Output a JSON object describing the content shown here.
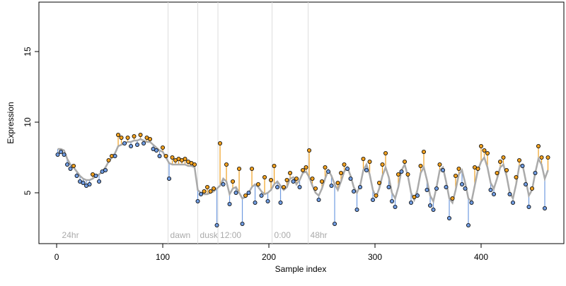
{
  "chart_data": {
    "type": "residual-scatter",
    "xlabel": "Sample index",
    "ylabel": "Expression",
    "xlim": [
      -16.7,
      478
    ],
    "ylim": [
      1.4,
      18.5
    ],
    "xticks": [
      0,
      100,
      200,
      300,
      400
    ],
    "yticks": [
      5,
      10,
      15
    ],
    "annotations": [
      {
        "x": 3,
        "label": "24hr",
        "line": false
      },
      {
        "x": 105,
        "label": "dawn",
        "line": true
      },
      {
        "x": 133,
        "label": "dusk",
        "line": true
      },
      {
        "x": 152,
        "label": "12:00",
        "line": true
      },
      {
        "x": 203,
        "label": "0:00",
        "line": true
      },
      {
        "x": 237,
        "label": "48hr",
        "line": true
      }
    ],
    "fit_color": "#aaaaaa",
    "above_color": "#f0a020",
    "below_color": "#6f9be0",
    "x": [
      1,
      4,
      7,
      10,
      13,
      16,
      19,
      22,
      25,
      28,
      31,
      34,
      37,
      40,
      43,
      46,
      49,
      52,
      55,
      58,
      61,
      64,
      67,
      70,
      73,
      76,
      79,
      82,
      85,
      88,
      91,
      94,
      97,
      100,
      103,
      106,
      109,
      112,
      115,
      118,
      121,
      124,
      127,
      130,
      133,
      136,
      139,
      142,
      145,
      148,
      151,
      154,
      157,
      160,
      163,
      166,
      169,
      172,
      175,
      178,
      181,
      184,
      187,
      190,
      193,
      196,
      199,
      202,
      205,
      208,
      211,
      214,
      217,
      220,
      223,
      226,
      229,
      232,
      235,
      238,
      241,
      244,
      247,
      250,
      253,
      256,
      259,
      262,
      265,
      268,
      271,
      274,
      277,
      280,
      283,
      286,
      289,
      292,
      295,
      298,
      301,
      304,
      307,
      310,
      313,
      316,
      319,
      322,
      325,
      328,
      331,
      334,
      337,
      340,
      343,
      346,
      349,
      352,
      355,
      358,
      361,
      364,
      367,
      370,
      373,
      376,
      379,
      382,
      385,
      388,
      391,
      394,
      397,
      400,
      403,
      406,
      409,
      412,
      415,
      418,
      421,
      424,
      427,
      430,
      433,
      436,
      439,
      442,
      445,
      448,
      451,
      454,
      457,
      460,
      463
    ],
    "fitted": [
      8.1,
      8.1,
      8.0,
      7.4,
      7.0,
      6.8,
      6.5,
      6.2,
      6.0,
      5.9,
      5.9,
      6.0,
      6.2,
      6.3,
      6.5,
      6.8,
      7.2,
      7.5,
      7.8,
      8.3,
      8.4,
      8.5,
      8.6,
      8.6,
      8.7,
      8.7,
      8.8,
      8.7,
      8.6,
      8.6,
      8.4,
      8.2,
      8.0,
      7.9,
      7.5,
      7.1,
      7.0,
      7.0,
      7.0,
      7.0,
      7.0,
      6.9,
      6.9,
      6.8,
      5.2,
      5.0,
      4.9,
      4.9,
      5.0,
      5.1,
      5.3,
      5.5,
      6.0,
      5.8,
      4.9,
      5.3,
      5.4,
      5.0,
      4.6,
      4.7,
      5.0,
      5.4,
      5.6,
      5.4,
      5.1,
      4.9,
      5.0,
      5.2,
      5.6,
      5.8,
      5.5,
      5.2,
      5.4,
      6.0,
      6.1,
      5.6,
      5.9,
      6.4,
      6.5,
      6.1,
      5.5,
      5.0,
      4.8,
      5.3,
      6.0,
      6.6,
      6.2,
      5.6,
      5.2,
      5.8,
      6.5,
      6.8,
      6.2,
      5.4,
      5.0,
      5.5,
      6.6,
      7.0,
      6.3,
      5.2,
      4.7,
      5.3,
      6.2,
      6.8,
      6.1,
      5.0,
      4.6,
      5.4,
      6.6,
      7.0,
      6.2,
      5.0,
      4.5,
      5.2,
      6.4,
      6.8,
      5.9,
      4.8,
      4.4,
      5.4,
      6.6,
      6.8,
      5.8,
      4.6,
      4.3,
      5.2,
      6.3,
      6.6,
      5.7,
      4.6,
      4.4,
      5.5,
      6.6,
      7.2,
      7.5,
      6.8,
      5.7,
      5.3,
      6.0,
      6.8,
      7.0,
      6.2,
      5.0,
      4.6,
      5.6,
      6.9,
      7.0,
      5.9,
      4.8,
      5.2,
      6.4,
      7.4,
      7.0,
      6.0,
      6.6
    ],
    "observed": [
      7.7,
      7.9,
      7.7,
      7.0,
      6.7,
      6.9,
      6.2,
      5.8,
      5.7,
      5.5,
      5.6,
      6.3,
      6.2,
      5.8,
      6.5,
      6.6,
      7.3,
      7.6,
      7.6,
      9.1,
      8.9,
      8.5,
      8.9,
      8.3,
      9.0,
      8.4,
      9.1,
      8.5,
      8.9,
      8.8,
      8.1,
      8.0,
      7.6,
      8.2,
      7.6,
      6.0,
      7.5,
      7.3,
      7.4,
      7.3,
      7.4,
      7.2,
      7.1,
      7.0,
      4.4,
      4.9,
      5.1,
      5.4,
      5.1,
      5.3,
      2.7,
      8.5,
      5.6,
      7.0,
      4.2,
      5.8,
      5.0,
      6.7,
      2.8,
      4.8,
      5.0,
      6.7,
      4.3,
      5.6,
      4.8,
      6.1,
      4.4,
      5.9,
      6.9,
      5.4,
      4.3,
      5.4,
      5.9,
      6.4,
      5.8,
      6.0,
      5.4,
      6.6,
      6.8,
      8.0,
      6.0,
      5.3,
      4.5,
      5.8,
      6.8,
      6.5,
      5.5,
      2.8,
      5.7,
      6.4,
      7.0,
      6.7,
      6.0,
      5.1,
      3.8,
      5.4,
      7.4,
      6.6,
      7.2,
      4.5,
      4.8,
      5.7,
      7.0,
      7.8,
      5.4,
      4.4,
      4.0,
      6.3,
      6.5,
      7.2,
      6.3,
      4.3,
      4.7,
      4.8,
      6.9,
      7.9,
      5.2,
      4.1,
      3.8,
      5.3,
      7.0,
      6.6,
      5.4,
      3.2,
      4.6,
      6.2,
      6.7,
      5.6,
      5.3,
      2.7,
      4.3,
      6.8,
      6.7,
      8.3,
      8.0,
      7.8,
      5.2,
      4.9,
      6.4,
      7.2,
      7.5,
      6.6,
      4.9,
      4.3,
      6.1,
      7.3,
      6.9,
      5.6,
      4.0,
      5.3,
      6.4,
      8.3,
      7.5,
      3.9,
      7.5
    ]
  }
}
